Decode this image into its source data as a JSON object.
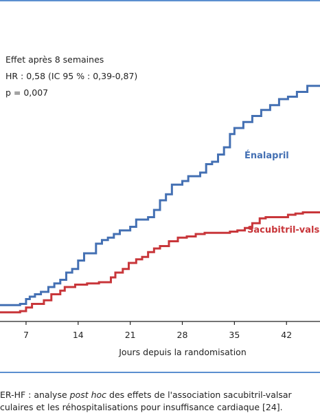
{
  "colors": {
    "frame": "#5b8fcf",
    "enalapril": "#4470b3",
    "sacubitril": "#c8363a",
    "axis": "#222222"
  },
  "annotation": {
    "line1": "Effet après 8 semaines",
    "line2": "HR : 0,58 (IC 95 % : 0,39-0,87)",
    "line3": "p = 0,007"
  },
  "caption": {
    "line1_prefix": "ER-HF : analyse ",
    "line1_italic": "post hoc",
    "line1_suffix": " des effets de l'association sacubitril-valsar",
    "line2": "culaires et les réhospitalisations pour insuffisance cardiaque [24]."
  },
  "chart_data": {
    "type": "line",
    "step": true,
    "title": "",
    "xlabel": "Jours depuis la randomisation",
    "ylabel": "",
    "xlim": [
      3.5,
      46.5
    ],
    "ylim": [
      0,
      1
    ],
    "xticks": [
      7,
      14,
      21,
      28,
      35,
      42
    ],
    "xtick_labels": [
      "7",
      "14",
      "21",
      "28",
      "35",
      "42"
    ],
    "series": [
      {
        "name": "Énalapril",
        "label": "Énalapril",
        "color": "#4470b3",
        "x": [
          3.5,
          6.2,
          7.0,
          7.5,
          8.2,
          9.0,
          10.0,
          10.8,
          11.6,
          12.4,
          13.2,
          14.0,
          14.8,
          16.4,
          17.2,
          18.0,
          18.8,
          19.6,
          21.0,
          21.8,
          23.4,
          24.2,
          25.0,
          25.8,
          26.6,
          28.0,
          28.8,
          30.4,
          31.2,
          32.0,
          32.8,
          33.6,
          34.4,
          35.0,
          36.2,
          37.4,
          38.6,
          39.8,
          41.0,
          42.2,
          43.4,
          44.8,
          46.5
        ],
        "y": [
          0.065,
          0.07,
          0.09,
          0.1,
          0.11,
          0.12,
          0.14,
          0.155,
          0.17,
          0.2,
          0.215,
          0.25,
          0.28,
          0.32,
          0.335,
          0.345,
          0.36,
          0.375,
          0.39,
          0.42,
          0.43,
          0.46,
          0.5,
          0.525,
          0.565,
          0.58,
          0.6,
          0.615,
          0.65,
          0.66,
          0.69,
          0.72,
          0.775,
          0.8,
          0.825,
          0.85,
          0.875,
          0.895,
          0.92,
          0.93,
          0.95,
          0.975,
          0.975
        ]
      },
      {
        "name": "Sacubitril-valsartan",
        "label": "Sacubitril-valsa",
        "color": "#c8363a",
        "x": [
          3.5,
          6.2,
          7.0,
          7.8,
          9.4,
          10.4,
          11.6,
          12.2,
          13.6,
          15.2,
          16.8,
          18.4,
          19.0,
          20.0,
          20.8,
          21.8,
          22.6,
          23.4,
          24.2,
          25.0,
          26.2,
          27.4,
          28.6,
          29.8,
          31.0,
          34.4,
          35.4,
          36.4,
          37.4,
          38.4,
          39.2,
          42.2,
          43.2,
          44.2,
          46.5
        ],
        "y": [
          0.035,
          0.04,
          0.055,
          0.07,
          0.085,
          0.11,
          0.125,
          0.14,
          0.15,
          0.155,
          0.16,
          0.18,
          0.2,
          0.215,
          0.24,
          0.255,
          0.265,
          0.285,
          0.3,
          0.31,
          0.33,
          0.345,
          0.35,
          0.36,
          0.365,
          0.37,
          0.375,
          0.385,
          0.405,
          0.425,
          0.43,
          0.44,
          0.445,
          0.45,
          0.45
        ]
      }
    ]
  }
}
